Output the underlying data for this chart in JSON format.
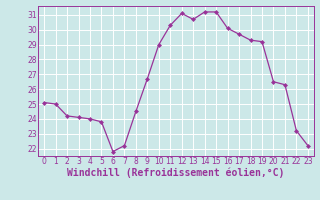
{
  "x": [
    0,
    1,
    2,
    3,
    4,
    5,
    6,
    7,
    8,
    9,
    10,
    11,
    12,
    13,
    14,
    15,
    16,
    17,
    18,
    19,
    20,
    21,
    22,
    23
  ],
  "y": [
    25.1,
    25.0,
    24.2,
    24.1,
    24.0,
    23.8,
    21.8,
    22.2,
    24.5,
    26.7,
    29.0,
    30.3,
    31.1,
    30.7,
    31.2,
    31.2,
    30.1,
    29.7,
    29.3,
    29.2,
    26.5,
    26.3,
    23.2,
    22.2
  ],
  "line_color": "#993399",
  "marker": "D",
  "marker_size": 2.0,
  "bg_color": "#cce8e8",
  "grid_color": "#ffffff",
  "xlabel": "Windchill (Refroidissement éolien,°C)",
  "ylim_min": 21.5,
  "ylim_max": 31.6,
  "xlim_min": -0.5,
  "xlim_max": 23.5,
  "yticks": [
    22,
    23,
    24,
    25,
    26,
    27,
    28,
    29,
    30,
    31
  ],
  "xticks": [
    0,
    1,
    2,
    3,
    4,
    5,
    6,
    7,
    8,
    9,
    10,
    11,
    12,
    13,
    14,
    15,
    16,
    17,
    18,
    19,
    20,
    21,
    22,
    23
  ],
  "tick_fontsize": 5.5,
  "xlabel_fontsize": 7.0,
  "line_width": 0.9
}
